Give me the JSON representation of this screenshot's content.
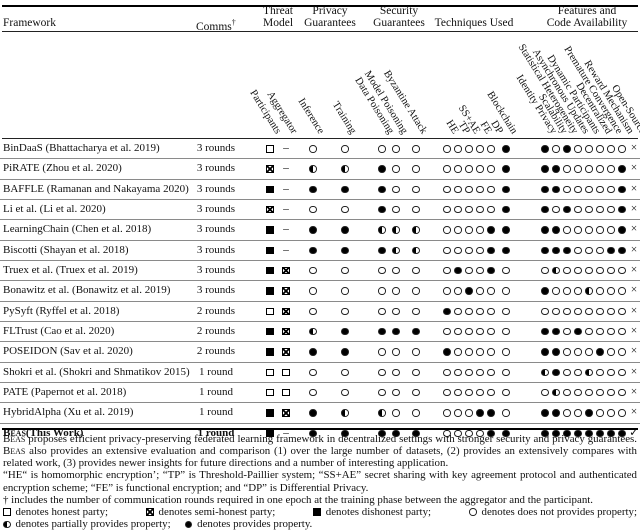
{
  "header": {
    "framework_label": "Framework",
    "comms_label": "Comms",
    "comms_sup": "†",
    "groups": [
      {
        "lines": [
          "Threat",
          "Model"
        ],
        "cols": [
          "Participants",
          "Aggregator"
        ]
      },
      {
        "lines": [
          "Privacy",
          "Guarantees"
        ],
        "cols": [
          "Inference",
          "Training"
        ]
      },
      {
        "lines": [
          "Security",
          "Guarantees"
        ],
        "cols": [
          "Data Poisoning",
          "Model Poisoning",
          "Byzantine Attack"
        ]
      },
      {
        "lines": [
          "Techniques Used"
        ],
        "cols": [
          "HE",
          "TP",
          "SS+AE",
          "FE",
          "DP",
          "Blockchain"
        ]
      },
      {
        "lines": [
          "Features and",
          "Code Availability"
        ],
        "cols": [
          "Identity Privacy",
          "Scalability",
          "Statistical Heterogeneity",
          "Asynchronous Updates",
          "Dynamic Participants",
          "Decentralized",
          "Premature Convergence",
          "Reward Mechanism",
          "Open-Source"
        ]
      }
    ]
  },
  "symbol_meanings": {
    "es": "honest party",
    "xs": "semi-honest party",
    "fs": "dishonest party",
    "o": "does not provides property",
    "h": "partially provides property",
    "f": "provides property",
    "-": "not applicable",
    "x": "no",
    "v": "yes"
  },
  "rows": [
    {
      "sc": "",
      "name": "BinDaaS (Bhattacharya et al. 2019)",
      "bold": false,
      "comms": "3 rounds",
      "cells": [
        "es",
        "-",
        "o",
        "o",
        "o",
        "o",
        "o",
        "o",
        "o",
        "o",
        "o",
        "o",
        "f",
        "f",
        "o",
        "f",
        "o",
        "o",
        "o",
        "o",
        "o",
        "x"
      ]
    },
    {
      "sc": "",
      "name": "PiRATE (Zhou et al. 2020)",
      "bold": false,
      "comms": "3 rounds",
      "cells": [
        "xs",
        "-",
        "h",
        "h",
        "f",
        "o",
        "o",
        "o",
        "o",
        "o",
        "o",
        "o",
        "f",
        "f",
        "f",
        "o",
        "o",
        "o",
        "o",
        "o",
        "f",
        "x"
      ]
    },
    {
      "sc": "",
      "name": "BAFFLE (Ramanan and Nakayama 2020)",
      "bold": false,
      "comms": "3 rounds",
      "cells": [
        "fs",
        "-",
        "f",
        "f",
        "f",
        "o",
        "o",
        "o",
        "o",
        "o",
        "o",
        "o",
        "f",
        "f",
        "f",
        "o",
        "o",
        "o",
        "o",
        "o",
        "f",
        "x"
      ]
    },
    {
      "sc": "",
      "name": "Li et al. (Li et al. 2020)",
      "bold": false,
      "comms": "3 rounds",
      "cells": [
        "xs",
        "-",
        "o",
        "o",
        "f",
        "o",
        "o",
        "o",
        "o",
        "o",
        "o",
        "o",
        "f",
        "f",
        "o",
        "f",
        "o",
        "o",
        "o",
        "o",
        "f",
        "x"
      ]
    },
    {
      "sc": "",
      "name": "LearningChain (Chen et al. 2018)",
      "bold": false,
      "comms": "3 rounds",
      "cells": [
        "fs",
        "-",
        "f",
        "f",
        "h",
        "h",
        "h",
        "o",
        "o",
        "o",
        "o",
        "f",
        "f",
        "f",
        "f",
        "o",
        "o",
        "o",
        "o",
        "o",
        "f",
        "x"
      ]
    },
    {
      "sc": "",
      "name": "Biscotti (Shayan et al. 2018)",
      "bold": false,
      "comms": "3 rounds",
      "cells": [
        "fs",
        "-",
        "f",
        "f",
        "f",
        "h",
        "h",
        "o",
        "o",
        "o",
        "o",
        "f",
        "f",
        "f",
        "f",
        "f",
        "o",
        "o",
        "o",
        "f",
        "f",
        "x"
      ]
    },
    {
      "sc": "",
      "name": "Truex et al. (Truex et al. 2019)",
      "bold": false,
      "comms": "3 rounds",
      "cells": [
        "fs",
        "xs",
        "o",
        "o",
        "o",
        "o",
        "o",
        "o",
        "f",
        "o",
        "o",
        "f",
        "o",
        "o",
        "h",
        "o",
        "o",
        "o",
        "o",
        "o",
        "o",
        "x"
      ]
    },
    {
      "sc": "",
      "name": "Bonawitz et al. (Bonawitz et al. 2019)",
      "bold": false,
      "comms": "3 rounds",
      "cells": [
        "fs",
        "xs",
        "o",
        "o",
        "o",
        "o",
        "o",
        "o",
        "o",
        "f",
        "o",
        "o",
        "o",
        "f",
        "o",
        "o",
        "o",
        "h",
        "o",
        "o",
        "o",
        "x"
      ]
    },
    {
      "sc": "",
      "name": "PySyft (Ryffel et al. 2018)",
      "bold": false,
      "comms": "2 rounds",
      "cells": [
        "es",
        "xs",
        "o",
        "o",
        "o",
        "o",
        "o",
        "f",
        "o",
        "o",
        "o",
        "o",
        "o",
        "o",
        "o",
        "o",
        "o",
        "o",
        "o",
        "o",
        "o",
        "x"
      ]
    },
    {
      "sc": "",
      "name": "FLTrust (Cao et al. 2020)",
      "bold": false,
      "comms": "2 rounds",
      "cells": [
        "fs",
        "xs",
        "h",
        "f",
        "f",
        "f",
        "f",
        "o",
        "o",
        "o",
        "o",
        "o",
        "o",
        "f",
        "f",
        "o",
        "f",
        "o",
        "o",
        "o",
        "o",
        "x"
      ]
    },
    {
      "sc": "",
      "name": "POSEIDON (Sav et al. 2020)",
      "bold": false,
      "comms": "2 rounds",
      "cells": [
        "fs",
        "xs",
        "f",
        "f",
        "o",
        "o",
        "o",
        "f",
        "o",
        "o",
        "o",
        "o",
        "o",
        "f",
        "f",
        "o",
        "o",
        "o",
        "f",
        "o",
        "o",
        "x"
      ]
    },
    {
      "sc": "",
      "name": "Shokri et al. (Shokri and Shmatikov 2015)",
      "bold": false,
      "comms": "1 round",
      "cells": [
        "es",
        "es",
        "o",
        "o",
        "o",
        "o",
        "o",
        "o",
        "o",
        "o",
        "o",
        "o",
        "o",
        "h",
        "f",
        "o",
        "o",
        "h",
        "o",
        "o",
        "o",
        "x"
      ]
    },
    {
      "sc": "",
      "name": "PATE (Papernot et al. 2018)",
      "bold": false,
      "comms": "1 round",
      "cells": [
        "es",
        "es",
        "o",
        "o",
        "o",
        "o",
        "o",
        "o",
        "o",
        "o",
        "o",
        "o",
        "o",
        "o",
        "h",
        "o",
        "o",
        "o",
        "o",
        "o",
        "o",
        "x"
      ]
    },
    {
      "sc": "",
      "name": "HybridAlpha (Xu et al. 2019)",
      "bold": false,
      "comms": "1 round",
      "cells": [
        "fs",
        "xs",
        "f",
        "h",
        "h",
        "o",
        "o",
        "o",
        "o",
        "o",
        "f",
        "f",
        "o",
        "f",
        "f",
        "o",
        "o",
        "f",
        "o",
        "o",
        "o",
        "x"
      ]
    },
    {
      "sc": "Beas",
      "name": "(This Work)",
      "bold": true,
      "comms": "1 round",
      "cells": [
        "fs",
        "-",
        "f",
        "f",
        "f",
        "f",
        "f",
        "o",
        "o",
        "o",
        "o",
        "f",
        "f",
        "f",
        "f",
        "f",
        "f",
        "f",
        "f",
        "f",
        "f",
        "v"
      ]
    }
  ],
  "caption": {
    "para_segments": [
      {
        "sc": "Beas"
      },
      {
        "t": " proposes efficient privacy-preserving federated learning framework in decentralized settings with stronger security and privacy guarantees. "
      },
      {
        "sc": "Beas"
      },
      {
        "t": " also provides an extensive evaluation and comparison (1) over the large number of datasets, (2) provides an extensively compares with related work, (3) provides newer insights for future directions and a number of interesting application."
      }
    ],
    "defs": "“HE“ is homomorphic encryption’; “TP” is Threshold-Paillier system; “SS+AE” secret sharing with key agreement protocol and authenticated encryption scheme; “FE” is functional encryption; and “DP” is Differential Privacy.",
    "dagger": "† includes the number of communication rounds required in one epoch at the training phase between the aggregator and the participant.",
    "legend": [
      {
        "sym": "es",
        "text": "denotes honest party;"
      },
      {
        "sym": "xs",
        "text": "denotes semi-honest party;"
      },
      {
        "sym": "fs",
        "text": "denotes dishonest party;"
      },
      {
        "sym": "o",
        "text": "denotes does not provides property;"
      },
      {
        "sym": "h",
        "text": "denotes partially provides property;"
      },
      {
        "sym": "f",
        "text": "denotes provides property."
      }
    ]
  }
}
